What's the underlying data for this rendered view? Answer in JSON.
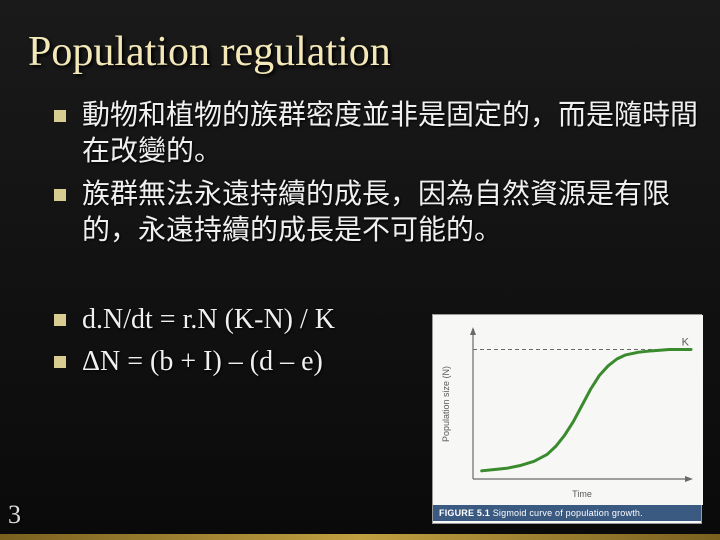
{
  "slide": {
    "title": "Population regulation",
    "page_number": "3",
    "bullets_top": [
      "動物和植物的族群密度並非是固定的，而是隨時間在改變的。",
      "族群無法永遠持續的成長，因為自然資源是有限的，永遠持續的成長是不可能的。"
    ],
    "bullets_bottom": [
      "d.N/dt = r.N (K-N) / K",
      "ΔN = (b + I) – (d – e)"
    ]
  },
  "figure": {
    "type": "line",
    "caption_label": "FIGURE 5.1",
    "caption_text": "Sigmoid curve of population growth.",
    "ylabel": "Population size (N)",
    "xlabel": "Time",
    "k_label": "K",
    "xlim": [
      0,
      100
    ],
    "ylim": [
      0,
      110
    ],
    "curve_color": "#3a8a2e",
    "curve_width": 3,
    "axis_color": "#6a6a6a",
    "dash_color": "#6a6a6a",
    "background_color": "#f7f7f5",
    "text_color": "#5a5a5a",
    "label_fontsize": 9,
    "k_value": 95,
    "curve_points": [
      [
        4,
        6
      ],
      [
        10,
        7
      ],
      [
        16,
        8
      ],
      [
        22,
        10
      ],
      [
        28,
        13
      ],
      [
        34,
        18
      ],
      [
        38,
        24
      ],
      [
        42,
        32
      ],
      [
        46,
        42
      ],
      [
        50,
        54
      ],
      [
        54,
        66
      ],
      [
        58,
        76
      ],
      [
        62,
        83
      ],
      [
        66,
        88
      ],
      [
        70,
        91
      ],
      [
        76,
        93
      ],
      [
        82,
        94
      ],
      [
        90,
        95
      ],
      [
        100,
        95
      ]
    ]
  },
  "colors": {
    "title_color": "#f4e8b8",
    "bullet_marker": "#d8cc90",
    "body_text": "#f0f0f0",
    "slide_bg_top": "#1a1a1a",
    "slide_bg_bottom": "#0a0a0a",
    "caption_bg": "#3a5a82",
    "caption_text": "#ffffff"
  }
}
